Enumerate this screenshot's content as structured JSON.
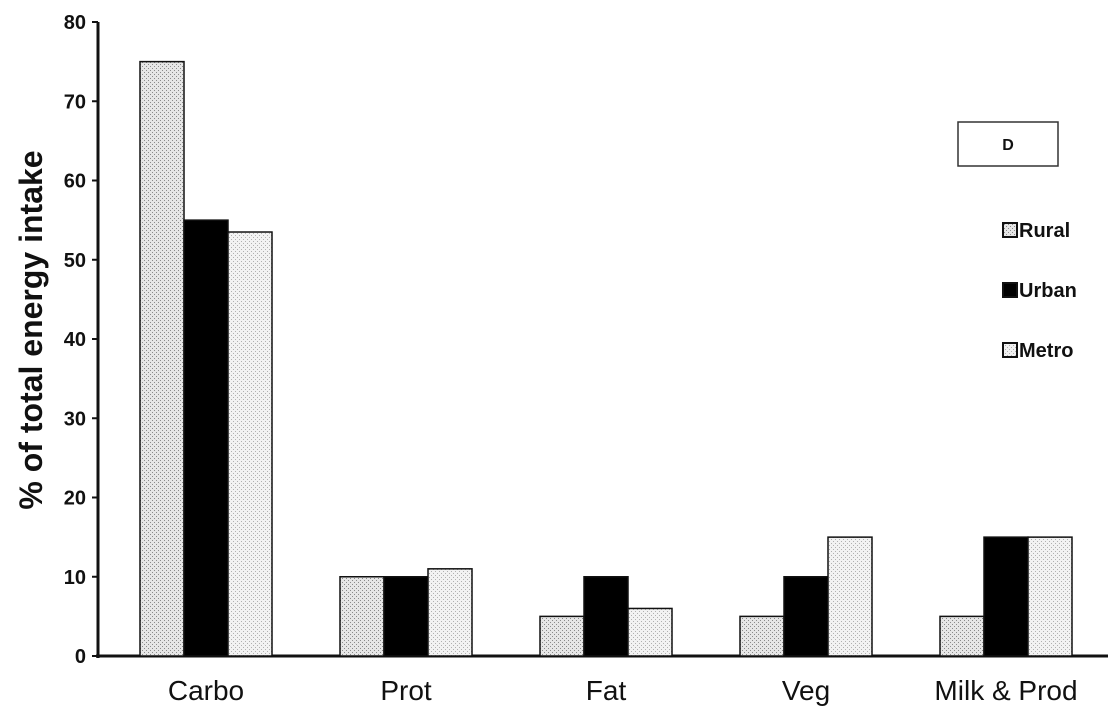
{
  "chart_data": {
    "type": "bar",
    "panel_label": "D",
    "ylabel": "% of total energy  intake",
    "xlabel": "",
    "ylim": [
      0,
      80
    ],
    "yticks": [
      0,
      10,
      20,
      30,
      40,
      50,
      60,
      70,
      80
    ],
    "categories": [
      "Carbo",
      "Prot",
      "Fat",
      "Veg",
      "Milk & Prod"
    ],
    "series": [
      {
        "name": "Rural",
        "values": [
          75,
          10,
          5,
          5,
          5
        ],
        "fill": "rural-dotted"
      },
      {
        "name": "Urban",
        "values": [
          55,
          10,
          10,
          10,
          15
        ],
        "fill": "#000000"
      },
      {
        "name": "Metro",
        "values": [
          53.5,
          11,
          6,
          15,
          15
        ],
        "fill": "metro-dotted"
      }
    ],
    "legend_position": "right",
    "grid": false
  }
}
